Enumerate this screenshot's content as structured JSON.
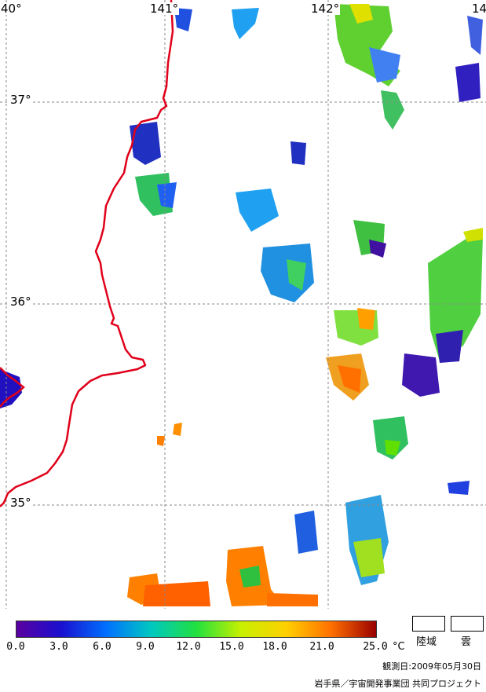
{
  "map": {
    "longitude_labels": [
      "40°",
      "141°",
      "142°",
      "14"
    ],
    "latitude_labels": [
      "37°",
      "36°",
      "35°"
    ],
    "colors": {
      "coastline": "#e0001a",
      "gridline": "#8a8a8a",
      "land": "#ffffff"
    }
  },
  "legend": {
    "colorbar_stops": [
      "#5a00a0",
      "#1a10d0",
      "#0070ff",
      "#00c8c0",
      "#20e040",
      "#c8f000",
      "#ffd000",
      "#ff7000",
      "#9a0000"
    ],
    "tick_labels": [
      "0.0",
      "3.0",
      "6.0",
      "9.0",
      "12.0",
      "15.0",
      "18.0",
      "21.0",
      "25.0"
    ],
    "unit": "°C",
    "land_label": "陸域",
    "cloud_label": "雲"
  },
  "observation_date": "観測日:2009年05月30日",
  "credit": "岩手県／宇宙開発事業団 共同プロジェクト"
}
